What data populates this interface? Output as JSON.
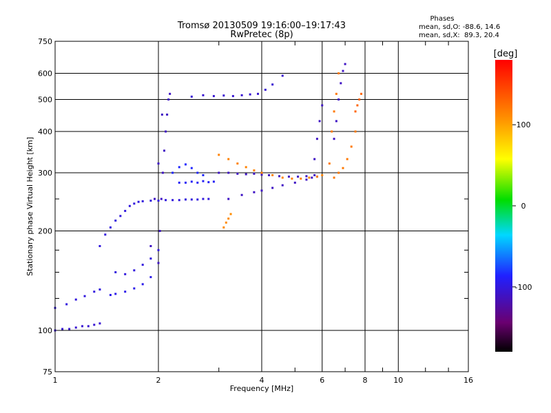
{
  "chart_data": {
    "type": "scatter",
    "title": "Tromsø 20130509 19:16:00–19:17:43",
    "subtitle": "RwPretec (8p)",
    "xlabel": "Frequency [MHz]",
    "ylabel": "Stationary phase Virtual Height [km]",
    "x_scale": "log",
    "y_scale": "log",
    "xlim": [
      1,
      16
    ],
    "ylim": [
      75,
      750
    ],
    "x_ticks": [
      1,
      2,
      4,
      6,
      8,
      10,
      16
    ],
    "y_ticks": [
      75,
      100,
      200,
      300,
      400,
      500,
      600,
      750
    ],
    "grid": true,
    "stats": {
      "heading": "Phases",
      "line_o": "mean, sd,O: -88.6, 14.6",
      "line_x": "mean, sd,X:  89.3, 20.4"
    },
    "colorbar": {
      "label": "[deg]",
      "range": [
        -180,
        180
      ],
      "ticks": [
        100,
        0,
        -100
      ],
      "colormap": "rainbow (black/purple → blue → cyan → green → yellow → red)"
    },
    "traces": [
      {
        "x": [
          1.0,
          1.05,
          1.1,
          1.15,
          1.2,
          1.25,
          1.3,
          1.35
        ],
        "y": [
          100,
          101,
          101,
          102,
          103,
          103,
          104,
          105
        ],
        "phase": -105
      },
      {
        "x": [
          1.0,
          1.08,
          1.15,
          1.22,
          1.3,
          1.35
        ],
        "y": [
          117,
          120,
          124,
          127,
          131,
          133
        ],
        "phase": -100
      },
      {
        "x": [
          1.35,
          1.4,
          1.45,
          1.5,
          1.55,
          1.6,
          1.65,
          1.7,
          1.75,
          1.8,
          1.9,
          2.0,
          2.1,
          2.2,
          2.3,
          2.4,
          2.5,
          2.6,
          2.7,
          2.8
        ],
        "y": [
          180,
          195,
          205,
          215,
          222,
          230,
          238,
          242,
          245,
          246,
          247,
          247,
          248,
          248,
          248,
          249,
          249,
          249,
          250,
          250
        ],
        "phase": -100
      },
      {
        "x": [
          1.45,
          1.5,
          1.6,
          1.7,
          1.8,
          1.9
        ],
        "y": [
          128,
          129,
          131,
          134,
          138,
          145
        ],
        "phase": -95
      },
      {
        "x": [
          1.5,
          1.6,
          1.7,
          1.8,
          1.9,
          2.0
        ],
        "y": [
          150,
          148,
          152,
          158,
          165,
          175
        ],
        "phase": -100
      },
      {
        "x": [
          2.0,
          2.02,
          2.04,
          2.06,
          2.08,
          2.1,
          2.12,
          2.14,
          2.16
        ],
        "y": [
          160,
          200,
          250,
          300,
          350,
          400,
          450,
          500,
          520
        ],
        "phase": -110
      },
      {
        "x": [
          1.9,
          1.95,
          2.0,
          2.05
        ],
        "y": [
          180,
          250,
          320,
          450
        ],
        "phase": -110
      },
      {
        "x": [
          2.3,
          2.4,
          2.5,
          2.6,
          2.7,
          2.8,
          2.9
        ],
        "y": [
          280,
          280,
          282,
          280,
          283,
          281,
          282
        ],
        "phase": -90
      },
      {
        "x": [
          2.2,
          2.3,
          2.4,
          2.5,
          2.6,
          2.7
        ],
        "y": [
          300,
          312,
          318,
          310,
          300,
          295
        ],
        "phase": -85
      },
      {
        "x": [
          2.5,
          2.7,
          2.9,
          3.1,
          3.3,
          3.5,
          3.7,
          3.9,
          4.1,
          4.3,
          4.6
        ],
        "y": [
          510,
          515,
          512,
          514,
          512,
          515,
          518,
          520,
          535,
          555,
          590
        ],
        "phase": -105
      },
      {
        "x": [
          3.0,
          3.2,
          3.4,
          3.6,
          3.8,
          4.0,
          4.2,
          4.5,
          4.8,
          5.1,
          5.4,
          5.7
        ],
        "y": [
          300,
          300,
          298,
          297,
          298,
          296,
          295,
          293,
          292,
          292,
          293,
          295
        ],
        "phase": -110
      },
      {
        "x": [
          3.2,
          3.5,
          3.8,
          4.0,
          4.3,
          4.6,
          5.0,
          5.4,
          5.8
        ],
        "y": [
          250,
          257,
          262,
          265,
          270,
          275,
          280,
          286,
          292
        ],
        "phase": -110
      },
      {
        "x": [
          3.0,
          3.2,
          3.4,
          3.6,
          3.8,
          4.0,
          4.3,
          4.6,
          4.9,
          5.2,
          5.5,
          5.8,
          6.0
        ],
        "y": [
          340,
          330,
          320,
          312,
          305,
          300,
          295,
          290,
          288,
          288,
          290,
          292,
          295
        ],
        "phase": 115
      },
      {
        "x": [
          3.1,
          3.15,
          3.2,
          3.25
        ],
        "y": [
          205,
          212,
          218,
          225
        ],
        "phase": 110
      },
      {
        "x": [
          5.6,
          5.7,
          5.8,
          5.9,
          6.0
        ],
        "y": [
          290,
          330,
          380,
          430,
          480
        ],
        "phase": -110
      },
      {
        "x": [
          6.3,
          6.4,
          6.5,
          6.6,
          6.7
        ],
        "y": [
          320,
          400,
          460,
          520,
          600
        ],
        "phase": 120
      },
      {
        "x": [
          6.5,
          6.6,
          6.7,
          6.8,
          6.9,
          7.0
        ],
        "y": [
          380,
          430,
          500,
          560,
          610,
          640
        ],
        "phase": -110
      },
      {
        "x": [
          6.5,
          6.7,
          6.9,
          7.1,
          7.3,
          7.5
        ],
        "y": [
          290,
          300,
          310,
          330,
          360,
          400
        ],
        "phase": 120
      },
      {
        "x": [
          7.5,
          7.6,
          7.7,
          7.8
        ],
        "y": [
          460,
          480,
          500,
          520
        ],
        "phase": 130
      }
    ]
  }
}
